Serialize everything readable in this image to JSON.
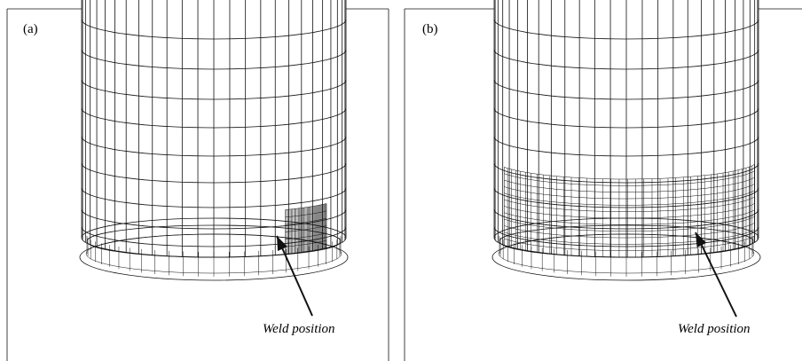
{
  "panels": [
    {
      "label": "(a)",
      "annotation": "Weld position"
    },
    {
      "label": "(b)",
      "annotation": "Weld position"
    }
  ]
}
